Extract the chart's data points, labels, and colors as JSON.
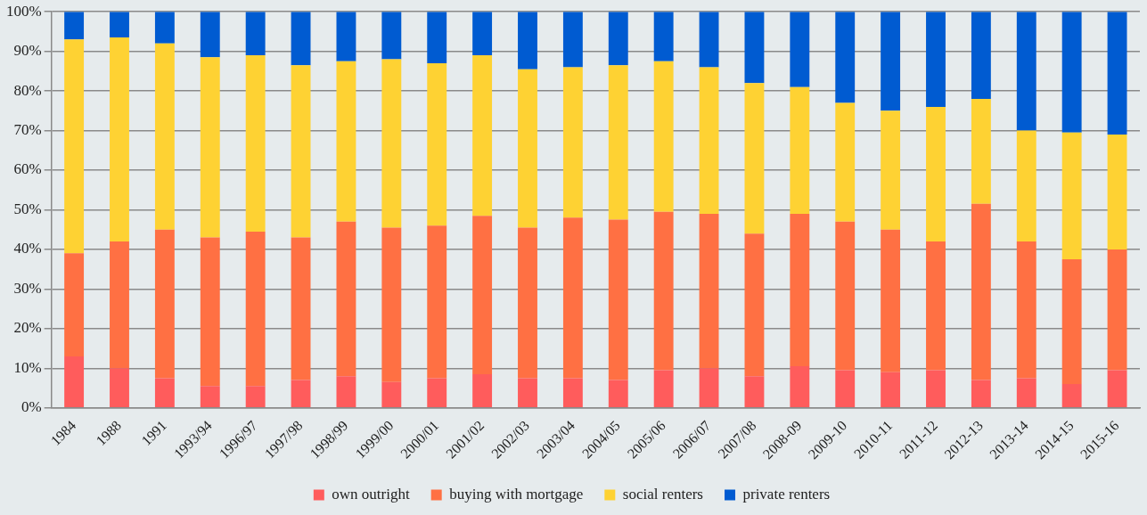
{
  "chart_data": {
    "type": "bar",
    "stacked": true,
    "categories": [
      "1984",
      "1988",
      "1991",
      "1993/94",
      "1996/97",
      "1997/98",
      "1998/99",
      "1999/00",
      "2000/01",
      "2001/02",
      "2002/03",
      "2003/04",
      "2004/05",
      "2005/06",
      "2006/07",
      "2007/08",
      "2008-09",
      "2009-10",
      "2010-11",
      "2011-12",
      "2012-13",
      "2013-14",
      "2014-15",
      "2015-16"
    ],
    "series": [
      {
        "name": "own outright",
        "color": "#ff5c5c",
        "values": [
          13,
          10,
          7.5,
          5.5,
          5.5,
          7,
          8,
          6.5,
          7.5,
          8.5,
          7.5,
          7.5,
          7,
          9.5,
          10,
          8,
          10.5,
          9.5,
          9,
          9.5,
          7,
          7.5,
          6,
          9.5
        ]
      },
      {
        "name": "buying with mortgage",
        "color": "#ff7043",
        "values": [
          26,
          32,
          37.5,
          37.5,
          39,
          36,
          39,
          39,
          38.5,
          40,
          38,
          40.5,
          40.5,
          40,
          39,
          36,
          38.5,
          37.5,
          36,
          32.5,
          44.5,
          34.5,
          31.5,
          30.5
        ]
      },
      {
        "name": "social renters",
        "color": "#fed233",
        "values": [
          54,
          51.5,
          47,
          45.5,
          44.5,
          43.5,
          40.5,
          42.5,
          41,
          40.5,
          40,
          38,
          39,
          38,
          37,
          38,
          32,
          30,
          30,
          34,
          26.5,
          28,
          32,
          29
        ]
      },
      {
        "name": "private renters",
        "color": "#005bd1",
        "values": [
          7,
          6.5,
          8,
          11.5,
          11,
          13.5,
          12.5,
          12,
          13,
          11,
          14.5,
          14,
          13.5,
          12.5,
          14,
          18,
          19,
          23,
          25,
          24,
          22,
          30,
          30.5,
          31
        ]
      }
    ],
    "ylim": [
      0,
      100
    ],
    "yticks": [
      {
        "value": 0,
        "label": "0%"
      },
      {
        "value": 10,
        "label": "10%"
      },
      {
        "value": 20,
        "label": "20%"
      },
      {
        "value": 30,
        "label": "30%"
      },
      {
        "value": 40,
        "label": "40%"
      },
      {
        "value": 50,
        "label": "50%"
      },
      {
        "value": 60,
        "label": "60%"
      },
      {
        "value": 70,
        "label": "70%"
      },
      {
        "value": 80,
        "label": "80%"
      },
      {
        "value": 90,
        "label": "90%"
      },
      {
        "value": 100,
        "label": "100%"
      }
    ],
    "grid": "y",
    "legend": "bottom"
  }
}
